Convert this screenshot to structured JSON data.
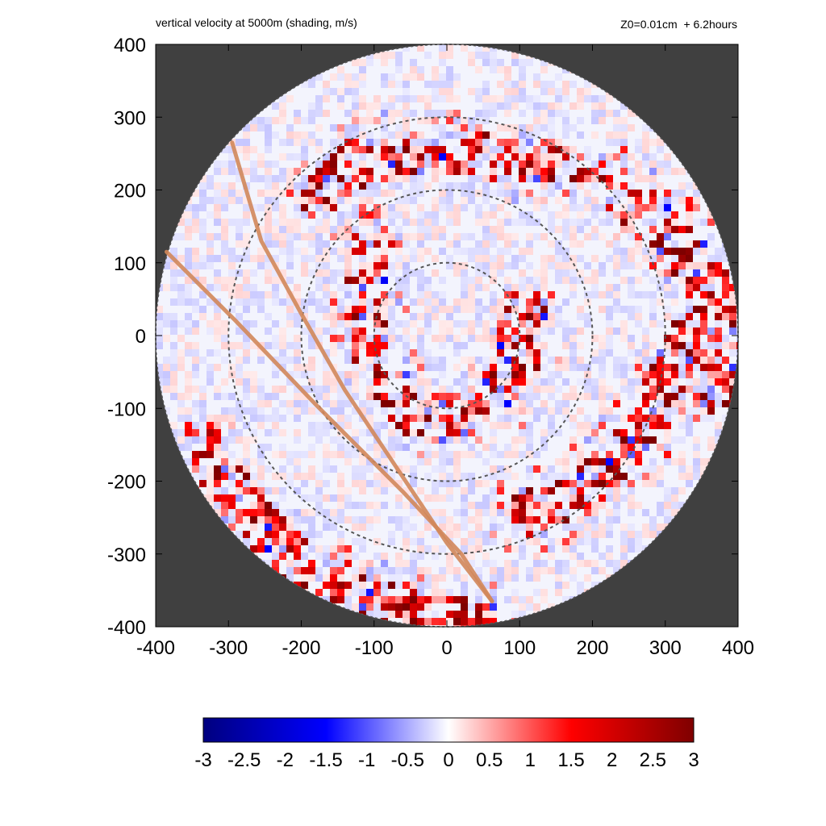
{
  "header": {
    "title": "vertical velocity at 5000m (shading, m/s)",
    "run_info": "Z0=0.01cm  + 6.2hours"
  },
  "chart_data": {
    "type": "heatmap",
    "title": "vertical velocity at 5000m (shading, m/s)",
    "annotation": "Z0=0.01cm  + 6.2hours",
    "xlabel": "",
    "ylabel": "",
    "xlim": [
      -400,
      400
    ],
    "ylim": [
      -400,
      400
    ],
    "x_ticks": [
      -400,
      -300,
      -200,
      -100,
      0,
      100,
      200,
      300,
      400
    ],
    "y_ticks": [
      -400,
      -300,
      -200,
      -100,
      0,
      100,
      200,
      300,
      400
    ],
    "domain_radius": 400,
    "outside_domain_color": "#404040",
    "range_rings": [
      100,
      200,
      300
    ],
    "track_lines": [
      {
        "points": [
          [
            -385,
            115
          ],
          [
            -290,
            20
          ],
          [
            -180,
            -95
          ],
          [
            -60,
            -215
          ],
          [
            20,
            -300
          ],
          [
            62,
            -365
          ]
        ]
      },
      {
        "points": [
          [
            -295,
            265
          ],
          [
            -255,
            130
          ],
          [
            -200,
            30
          ],
          [
            -140,
            -75
          ],
          [
            -60,
            -195
          ],
          [
            0,
            -285
          ],
          [
            62,
            -365
          ]
        ]
      }
    ],
    "track_color": "#d2875a",
    "colorbar": {
      "min": -3,
      "max": 3,
      "ticks": [
        "-3",
        "-2.5",
        "-2",
        "-1.5",
        "-1",
        "-0.5",
        "0",
        "0.5",
        "1",
        "1.5",
        "2",
        "2.5",
        "3"
      ],
      "colormap": [
        "#00007f",
        "#0000ff",
        "#ffffff",
        "#ff0000",
        "#7f0000"
      ]
    },
    "updraft_bands": [
      {
        "sign": "positive",
        "description": "inner spiral band",
        "points": [
          [
            -180,
            190
          ],
          [
            -110,
            260
          ],
          [
            20,
            255
          ],
          [
            130,
            240
          ],
          [
            220,
            210
          ],
          [
            300,
            150
          ],
          [
            350,
            80
          ],
          [
            370,
            0
          ],
          [
            360,
            -80
          ]
        ]
      },
      {
        "sign": "positive",
        "description": "eyewall",
        "points": [
          [
            -110,
            130
          ],
          [
            -120,
            60
          ],
          [
            -100,
            -40
          ],
          [
            -60,
            -100
          ],
          [
            0,
            -110
          ],
          [
            60,
            -80
          ],
          [
            95,
            -20
          ],
          [
            100,
            50
          ]
        ]
      },
      {
        "sign": "positive",
        "description": "outer rainband",
        "points": [
          [
            -340,
            -140
          ],
          [
            -290,
            -230
          ],
          [
            -220,
            -300
          ],
          [
            -140,
            -340
          ],
          [
            -40,
            -380
          ],
          [
            60,
            -390
          ]
        ]
      },
      {
        "sign": "positive",
        "description": "eastern band",
        "points": [
          [
            100,
            -240
          ],
          [
            170,
            -220
          ],
          [
            230,
            -160
          ],
          [
            270,
            -120
          ],
          [
            300,
            -60
          ],
          [
            330,
            10
          ]
        ]
      }
    ]
  }
}
